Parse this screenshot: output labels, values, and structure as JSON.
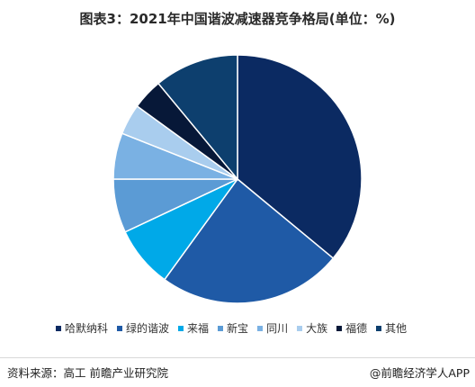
{
  "title": "图表3：2021年中国谐波减速器竞争格局(单位：%)",
  "chart_data": {
    "type": "pie",
    "title": "图表3：2021年中国谐波减速器竞争格局(单位：%)",
    "legend_position": "bottom",
    "series": [
      {
        "name": "哈默纳科",
        "value": 36,
        "color": "#0b2a62"
      },
      {
        "name": "绿的谐波",
        "value": 24,
        "color": "#1f5aa6"
      },
      {
        "name": "来福",
        "value": 8,
        "color": "#00a9e8"
      },
      {
        "name": "新宝",
        "value": 7,
        "color": "#5b9bd5"
      },
      {
        "name": "同川",
        "value": 6,
        "color": "#7ab1e3"
      },
      {
        "name": "大族",
        "value": 4,
        "color": "#a9cdee"
      },
      {
        "name": "福德",
        "value": 4,
        "color": "#071838"
      },
      {
        "name": "其他",
        "value": 11,
        "color": "#0d3f6e"
      }
    ]
  },
  "footer": {
    "source": "资料来源：高工 前瞻产业研究院",
    "brand": "@前瞻经济学人APP"
  }
}
